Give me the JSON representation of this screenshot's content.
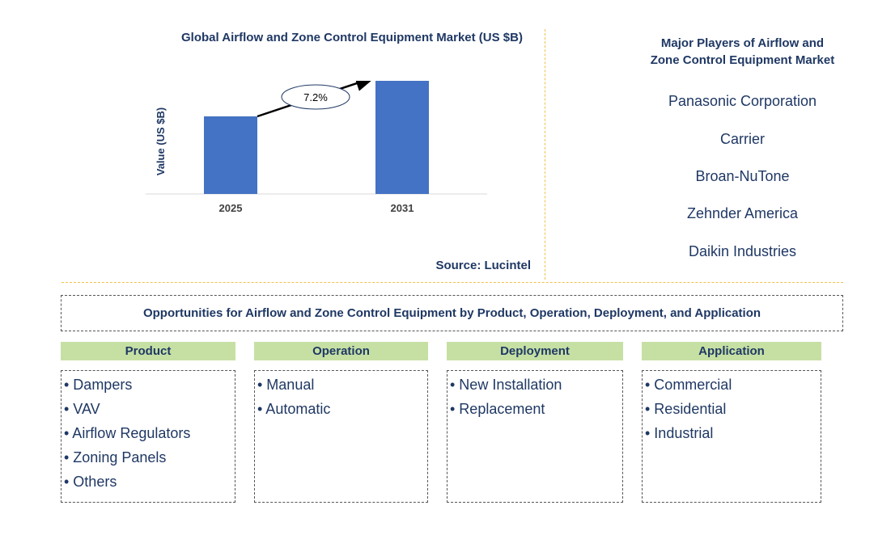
{
  "chart_data": {
    "type": "bar",
    "title": "Global Airflow and Zone Control Equipment Market (US $B)",
    "categories": [
      "2025",
      "2031"
    ],
    "values": [
      6.4,
      9.6
    ],
    "ylabel": "Value (US $B)",
    "xlabel": "",
    "ylim": [
      0,
      10
    ],
    "annotation": "7.2%",
    "source": "Source: Lucintel",
    "bar_color": "#4472c4",
    "grid": false
  },
  "players": {
    "title_line1": "Major Players of Airflow and",
    "title_line2": "Zone Control Equipment Market",
    "items": [
      "Panasonic Corporation",
      "Carrier",
      "Broan-NuTone",
      "Zehnder America",
      "Daikin Industries"
    ]
  },
  "opportunities": {
    "title": "Opportunities for Airflow and Zone Control Equipment by Product, Operation, Deployment, and Application",
    "categories": [
      {
        "name": "Product",
        "items": [
          "• Dampers",
          "• VAV",
          "• Airflow Regulators",
          "• Zoning Panels",
          "• Others"
        ]
      },
      {
        "name": "Operation",
        "items": [
          "• Manual",
          "• Automatic"
        ]
      },
      {
        "name": "Deployment",
        "items": [
          "• New Installation",
          "• Replacement"
        ]
      },
      {
        "name": "Application",
        "items": [
          "• Commercial",
          "• Residential",
          "• Industrial"
        ]
      }
    ]
  },
  "colors": {
    "header_fill": "#c6e0a4",
    "text": "#1f3864",
    "divider": "#f2c14e"
  }
}
